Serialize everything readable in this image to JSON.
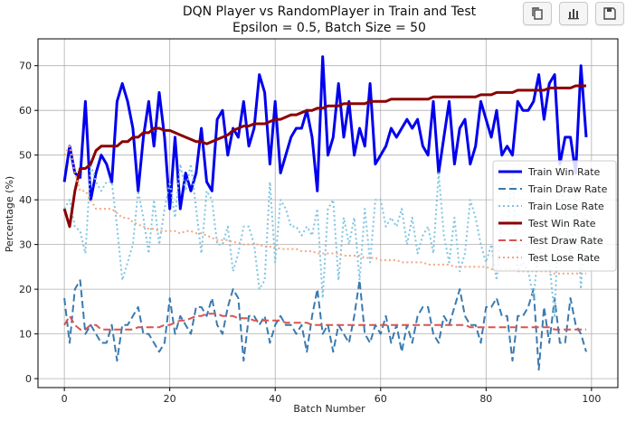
{
  "toolbar": {
    "buttons": [
      {
        "name": "copy-button",
        "icon": "copy-icon"
      },
      {
        "name": "chart-data-button",
        "icon": "bar-chart-icon"
      },
      {
        "name": "save-button",
        "icon": "floppy-disk-icon"
      }
    ]
  },
  "chart_data": {
    "type": "line",
    "title": "DQN Player vs RandomPlayer in Train and Test",
    "subtitle": "Epsilon = 0.5, Batch Size = 50",
    "xlabel": "Batch Number",
    "ylabel": "Percentage (%)",
    "xlim": [
      -5,
      105
    ],
    "ylim": [
      -2,
      76
    ],
    "xticks": [
      0,
      20,
      40,
      60,
      80,
      100
    ],
    "yticks": [
      0,
      10,
      20,
      30,
      40,
      50,
      60,
      70
    ],
    "grid": true,
    "legend_position": "center-right",
    "series": [
      {
        "name": "Train Win Rate",
        "color": "#0000ee",
        "style": "solid",
        "width": 3,
        "x": [
          0,
          1,
          2,
          3,
          4,
          5,
          6,
          7,
          8,
          9,
          10,
          11,
          12,
          13,
          14,
          15,
          16,
          17,
          18,
          19,
          20,
          21,
          22,
          23,
          24,
          25,
          26,
          27,
          28,
          29,
          30,
          31,
          32,
          33,
          34,
          35,
          36,
          37,
          38,
          39,
          40,
          41,
          42,
          43,
          44,
          45,
          46,
          47,
          48,
          49,
          50,
          51,
          52,
          53,
          54,
          55,
          56,
          57,
          58,
          59,
          60,
          61,
          62,
          63,
          64,
          65,
          66,
          67,
          68,
          69,
          70,
          71,
          72,
          73,
          74,
          75,
          76,
          77,
          78,
          79,
          80,
          81,
          82,
          83,
          84,
          85,
          86,
          87,
          88,
          89,
          90,
          91,
          92,
          93,
          94,
          95,
          96,
          97,
          98,
          99
        ],
        "values": [
          44,
          52,
          46,
          45,
          62,
          40,
          46,
          50,
          48,
          44,
          62,
          66,
          62,
          56,
          42,
          54,
          62,
          52,
          64,
          54,
          38,
          54,
          38,
          46,
          42,
          46,
          56,
          44,
          42,
          58,
          60,
          50,
          56,
          54,
          62,
          52,
          56,
          68,
          64,
          48,
          62,
          46,
          50,
          54,
          56,
          56,
          60,
          54,
          42,
          72,
          50,
          54,
          66,
          54,
          62,
          50,
          56,
          52,
          66,
          48,
          50,
          52,
          56,
          54,
          56,
          58,
          56,
          58,
          52,
          50,
          62,
          46,
          54,
          62,
          48,
          56,
          58,
          48,
          52,
          62,
          58,
          54,
          60,
          50,
          52,
          50,
          62,
          60,
          60,
          62,
          68,
          58,
          66,
          68,
          48,
          54,
          54,
          46,
          70,
          54
        ]
      },
      {
        "name": "Train Draw Rate",
        "color": "#3a7ab0",
        "style": "dashed",
        "width": 2,
        "x": [
          0,
          1,
          2,
          3,
          4,
          5,
          6,
          7,
          8,
          9,
          10,
          11,
          12,
          13,
          14,
          15,
          16,
          17,
          18,
          19,
          20,
          21,
          22,
          23,
          24,
          25,
          26,
          27,
          28,
          29,
          30,
          31,
          32,
          33,
          34,
          35,
          36,
          37,
          38,
          39,
          40,
          41,
          42,
          43,
          44,
          45,
          46,
          47,
          48,
          49,
          50,
          51,
          52,
          53,
          54,
          55,
          56,
          57,
          58,
          59,
          60,
          61,
          62,
          63,
          64,
          65,
          66,
          67,
          68,
          69,
          70,
          71,
          72,
          73,
          74,
          75,
          76,
          77,
          78,
          79,
          80,
          81,
          82,
          83,
          84,
          85,
          86,
          87,
          88,
          89,
          90,
          91,
          92,
          93,
          94,
          95,
          96,
          97,
          98,
          99
        ],
        "values": [
          18,
          8,
          20,
          22,
          10,
          12,
          10,
          8,
          8,
          12,
          4,
          12,
          12,
          14,
          16,
          10,
          10,
          8,
          6,
          8,
          18,
          10,
          14,
          12,
          10,
          16,
          16,
          14,
          18,
          12,
          10,
          16,
          20,
          18,
          4,
          14,
          14,
          12,
          14,
          8,
          12,
          14,
          12,
          12,
          10,
          12,
          6,
          14,
          20,
          10,
          12,
          6,
          12,
          10,
          8,
          14,
          22,
          10,
          8,
          12,
          10,
          14,
          8,
          12,
          6,
          12,
          8,
          14,
          16,
          16,
          10,
          8,
          14,
          12,
          16,
          20,
          14,
          12,
          12,
          8,
          16,
          16,
          18,
          14,
          14,
          4,
          14,
          14,
          16,
          20,
          2,
          16,
          8,
          18,
          8,
          8,
          18,
          12,
          10,
          6
        ]
      },
      {
        "name": "Train Lose Rate",
        "color": "#7ec4e2",
        "style": "dotted",
        "width": 2,
        "x": [
          0,
          1,
          2,
          3,
          4,
          5,
          6,
          7,
          8,
          9,
          10,
          11,
          12,
          13,
          14,
          15,
          16,
          17,
          18,
          19,
          20,
          21,
          22,
          23,
          24,
          25,
          26,
          27,
          28,
          29,
          30,
          31,
          32,
          33,
          34,
          35,
          36,
          37,
          38,
          39,
          40,
          41,
          42,
          43,
          44,
          45,
          46,
          47,
          48,
          49,
          50,
          51,
          52,
          53,
          54,
          55,
          56,
          57,
          58,
          59,
          60,
          61,
          62,
          63,
          64,
          65,
          66,
          67,
          68,
          69,
          70,
          71,
          72,
          73,
          74,
          75,
          76,
          77,
          78,
          79,
          80,
          81,
          82,
          83,
          84,
          85,
          86,
          87,
          88,
          89,
          90,
          91,
          92,
          93,
          94,
          95,
          96,
          97,
          98,
          99
        ],
        "values": [
          38,
          40,
          34,
          33,
          28,
          48,
          44,
          42,
          44,
          44,
          34,
          22,
          26,
          30,
          42,
          36,
          28,
          40,
          30,
          38,
          44,
          36,
          48,
          42,
          48,
          38,
          28,
          42,
          40,
          30,
          30,
          34,
          24,
          28,
          34,
          34,
          30,
          20,
          22,
          44,
          26,
          40,
          38,
          34,
          34,
          32,
          34,
          32,
          38,
          18,
          38,
          40,
          22,
          36,
          30,
          36,
          22,
          38,
          26,
          40,
          40,
          34,
          36,
          34,
          38,
          30,
          36,
          28,
          32,
          34,
          28,
          46,
          32,
          26,
          36,
          24,
          28,
          40,
          36,
          30,
          26,
          30,
          22,
          36,
          34,
          46,
          24,
          26,
          24,
          18,
          30,
          26,
          26,
          14,
          44,
          38,
          28,
          42,
          20,
          40
        ]
      },
      {
        "name": "Test Win Rate",
        "color": "#8b0000",
        "style": "solid",
        "width": 3,
        "x": [
          0,
          1,
          2,
          3,
          4,
          5,
          6,
          7,
          8,
          9,
          10,
          11,
          12,
          13,
          14,
          15,
          16,
          17,
          18,
          19,
          20,
          21,
          22,
          23,
          24,
          25,
          26,
          27,
          28,
          29,
          30,
          31,
          32,
          33,
          34,
          35,
          36,
          37,
          38,
          39,
          40,
          41,
          42,
          43,
          44,
          45,
          46,
          47,
          48,
          49,
          50,
          51,
          52,
          53,
          54,
          55,
          56,
          57,
          58,
          59,
          60,
          61,
          62,
          63,
          64,
          65,
          66,
          67,
          68,
          69,
          70,
          71,
          72,
          73,
          74,
          75,
          76,
          77,
          78,
          79,
          80,
          81,
          82,
          83,
          84,
          85,
          86,
          87,
          88,
          89,
          90,
          91,
          92,
          93,
          94,
          95,
          96,
          97,
          98,
          99
        ],
        "values": [
          38,
          34,
          42,
          47,
          47,
          48,
          51,
          52,
          52,
          52,
          52,
          53,
          53,
          54,
          54,
          55,
          55,
          56,
          56,
          55.5,
          55.5,
          55,
          54.5,
          54,
          53.5,
          53,
          53,
          52.5,
          53,
          53.5,
          54,
          54.5,
          55.5,
          56,
          56.5,
          56.5,
          57,
          57,
          57,
          57.5,
          58,
          58,
          58.5,
          59,
          59,
          59.5,
          60,
          60,
          60.5,
          60.5,
          61,
          61,
          61,
          61.5,
          61.5,
          61.5,
          61.5,
          61.5,
          62,
          62,
          62,
          62,
          62.5,
          62.5,
          62.5,
          62.5,
          62.5,
          62.5,
          62.5,
          62.5,
          63,
          63,
          63,
          63,
          63,
          63,
          63,
          63,
          63,
          63.5,
          63.5,
          63.5,
          64,
          64,
          64,
          64,
          64.5,
          64.5,
          64.5,
          64.5,
          64.5,
          64.5,
          65,
          65,
          65,
          65,
          65,
          65.5,
          65.5,
          65.5
        ]
      },
      {
        "name": "Test Draw Rate",
        "color": "#d9534f",
        "style": "dashed",
        "width": 2,
        "x": [
          0,
          1,
          2,
          3,
          4,
          5,
          6,
          7,
          8,
          9,
          10,
          11,
          12,
          13,
          14,
          15,
          16,
          17,
          18,
          19,
          20,
          21,
          22,
          23,
          24,
          25,
          26,
          27,
          28,
          29,
          30,
          31,
          32,
          33,
          34,
          35,
          36,
          37,
          38,
          39,
          40,
          41,
          42,
          43,
          44,
          45,
          46,
          47,
          48,
          49,
          50,
          51,
          52,
          53,
          54,
          55,
          56,
          57,
          58,
          59,
          60,
          61,
          62,
          63,
          64,
          65,
          66,
          67,
          68,
          69,
          70,
          71,
          72,
          73,
          74,
          75,
          76,
          77,
          78,
          79,
          80,
          81,
          82,
          83,
          84,
          85,
          86,
          87,
          88,
          89,
          90,
          91,
          92,
          93,
          94,
          95,
          96,
          97,
          98,
          99
        ],
        "values": [
          12,
          14,
          12,
          11,
          11,
          12,
          12,
          11,
          11,
          11,
          11,
          11,
          11,
          11,
          11.5,
          11.5,
          11.5,
          11.5,
          11.5,
          12,
          12,
          12.5,
          13,
          13,
          13.5,
          14,
          14,
          14.5,
          14.5,
          14.5,
          14,
          14,
          14,
          13.5,
          13.5,
          13.5,
          13,
          13,
          13,
          13,
          13,
          13,
          12.5,
          12.5,
          12.5,
          12.5,
          12.5,
          12,
          12,
          12,
          12,
          12,
          12,
          12,
          12,
          12,
          12,
          12,
          12,
          12,
          12,
          12,
          12,
          12,
          12,
          12,
          12,
          12,
          12,
          12,
          12,
          12,
          12,
          12,
          12,
          12,
          12,
          11.5,
          11.5,
          11.5,
          11.5,
          11.5,
          11.5,
          11.5,
          11.5,
          11.5,
          11.5,
          11.5,
          11.5,
          11.5,
          11.5,
          11.5,
          11.5,
          11,
          11,
          11,
          11,
          11,
          11,
          11
        ]
      },
      {
        "name": "Test Lose Rate",
        "color": "#f4a582",
        "style": "dotted",
        "width": 2,
        "x": [
          0,
          1,
          2,
          3,
          4,
          5,
          6,
          7,
          8,
          9,
          10,
          11,
          12,
          13,
          14,
          15,
          16,
          17,
          18,
          19,
          20,
          21,
          22,
          23,
          24,
          25,
          26,
          27,
          28,
          29,
          30,
          31,
          32,
          33,
          34,
          35,
          36,
          37,
          38,
          39,
          40,
          41,
          42,
          43,
          44,
          45,
          46,
          47,
          48,
          49,
          50,
          51,
          52,
          53,
          54,
          55,
          56,
          57,
          58,
          59,
          60,
          61,
          62,
          63,
          64,
          65,
          66,
          67,
          68,
          69,
          70,
          71,
          72,
          73,
          74,
          75,
          76,
          77,
          78,
          79,
          80,
          81,
          82,
          83,
          84,
          85,
          86,
          87,
          88,
          89,
          90,
          91,
          92,
          93,
          94,
          95,
          96,
          97,
          98,
          99
        ],
        "values": [
          50,
          52,
          46,
          42,
          42,
          40,
          38,
          38,
          38,
          38,
          37,
          36,
          36,
          35,
          34.5,
          34,
          33.5,
          33.5,
          33,
          33,
          33,
          33,
          32.5,
          33,
          33,
          32.5,
          32.5,
          32,
          31.5,
          31,
          31,
          31,
          30.5,
          30.5,
          30,
          30,
          30,
          30,
          29.5,
          29.5,
          29.5,
          29,
          29,
          29,
          29,
          28.5,
          28.5,
          28.5,
          28,
          28,
          28,
          28,
          28,
          27.5,
          27.5,
          27.5,
          27.5,
          27,
          27,
          27,
          26.5,
          26.5,
          26.5,
          26.5,
          26,
          26,
          26,
          26,
          26,
          25.5,
          25.5,
          25.5,
          25.5,
          25.5,
          25,
          25,
          25,
          25,
          25,
          25,
          25,
          24.5,
          24.5,
          24.5,
          24.5,
          24.5,
          24,
          24,
          24,
          24,
          24,
          24,
          24,
          23.5,
          23.5,
          23.5,
          23.5,
          23.5,
          23.5,
          23.5
        ]
      }
    ]
  }
}
